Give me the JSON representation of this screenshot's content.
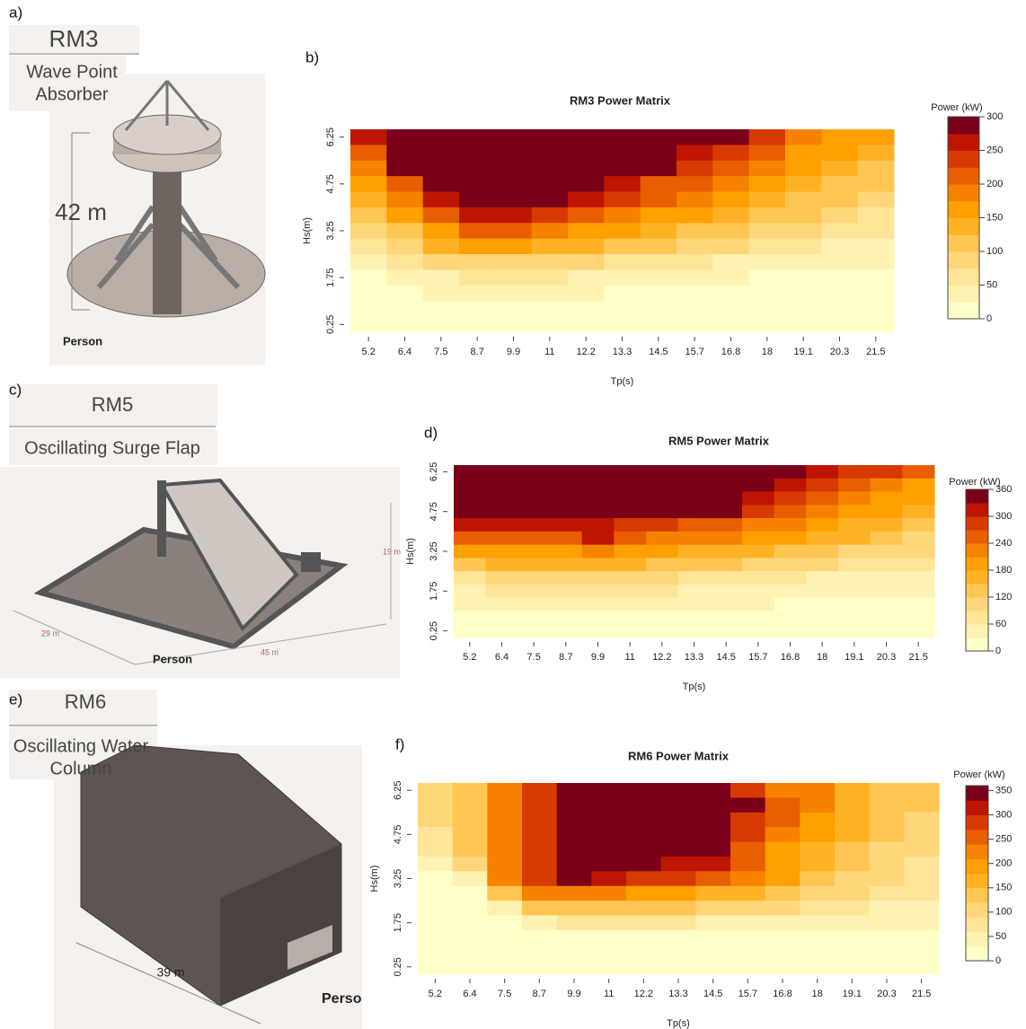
{
  "panels": [
    {
      "label": "a)",
      "title": "RM3",
      "subtitle": [
        "Wave Point",
        "Absorber"
      ],
      "dims": [
        "42 m"
      ],
      "person": "Person"
    },
    {
      "label": "c)",
      "title": "RM5",
      "subtitle": [
        "Oscillating Surge Flap"
      ],
      "dims": [
        "19 m",
        "29 m",
        "45 m"
      ],
      "person": "Person"
    },
    {
      "label": "e)",
      "title": "RM6",
      "subtitle": [
        "Oscillating Water",
        "Column"
      ],
      "dims": [
        "39 m"
      ],
      "person": "Person"
    }
  ],
  "chart_labels": [
    "b)",
    "d)",
    "f)"
  ],
  "chart_data": [
    {
      "type": "heatmap",
      "title": "RM3 Power Matrix",
      "x_label": "Tp(s)",
      "y_label": "Hs(m)",
      "legend_title": "Power (kW)",
      "categories": [
        "5.2",
        "6.4",
        "7.5",
        "8.7",
        "9.9",
        "11",
        "12.2",
        "13.3",
        "14.5",
        "15.7",
        "16.8",
        "18",
        "19.1",
        "20.3",
        "21.5"
      ],
      "y": [
        6.25,
        5.75,
        5.25,
        4.75,
        4.25,
        3.75,
        3.25,
        2.75,
        2.25,
        1.75,
        1.25,
        0.75,
        0.25
      ],
      "ylim": [
        0,
        6.5
      ],
      "yticks": [
        0.25,
        1.75,
        3.25,
        4.75,
        6.25
      ],
      "zlim": [
        0,
        300
      ],
      "zticks": [
        0,
        50,
        100,
        150,
        200,
        250,
        300
      ],
      "colors": [
        "#ffffc8",
        "#fff2b2",
        "#ffe598",
        "#ffd67a",
        "#ffc653",
        "#ffb224",
        "#ff9f00",
        "#f68200",
        "#e95e00",
        "#d73a00",
        "#bd1500",
        "#7a0019"
      ],
      "z": [
        [
          270,
          300,
          300,
          300,
          300,
          300,
          300,
          300,
          300,
          300,
          280,
          230,
          180,
          160,
          150
        ],
        [
          220,
          300,
          300,
          300,
          300,
          300,
          300,
          300,
          300,
          260,
          230,
          200,
          170,
          150,
          130
        ],
        [
          180,
          280,
          300,
          300,
          300,
          300,
          300,
          300,
          280,
          230,
          210,
          180,
          150,
          140,
          110
        ],
        [
          150,
          210,
          300,
          300,
          300,
          300,
          300,
          270,
          220,
          200,
          180,
          160,
          140,
          120,
          100
        ],
        [
          130,
          180,
          260,
          300,
          300,
          300,
          270,
          230,
          200,
          180,
          160,
          140,
          120,
          100,
          90
        ],
        [
          110,
          160,
          220,
          250,
          270,
          240,
          220,
          190,
          170,
          150,
          130,
          110,
          100,
          80,
          70
        ],
        [
          80,
          120,
          170,
          200,
          220,
          190,
          170,
          150,
          130,
          120,
          100,
          90,
          80,
          60,
          50
        ],
        [
          60,
          90,
          130,
          160,
          150,
          140,
          130,
          110,
          100,
          90,
          80,
          60,
          50,
          45,
          40
        ],
        [
          40,
          60,
          80,
          90,
          90,
          90,
          80,
          70,
          60,
          50,
          45,
          40,
          35,
          30,
          25
        ],
        [
          20,
          30,
          45,
          60,
          60,
          55,
          45,
          40,
          35,
          30,
          25,
          20,
          20,
          15,
          15
        ],
        [
          10,
          20,
          25,
          30,
          30,
          30,
          25,
          20,
          20,
          15,
          15,
          10,
          10,
          10,
          10
        ],
        [
          5,
          5,
          10,
          10,
          10,
          10,
          10,
          5,
          5,
          5,
          5,
          5,
          5,
          5,
          5
        ],
        [
          0,
          0,
          0,
          0,
          0,
          0,
          0,
          0,
          0,
          0,
          0,
          0,
          0,
          0,
          0
        ]
      ]
    },
    {
      "type": "heatmap",
      "title": "RM5 Power Matrix",
      "x_label": "Tp(s)",
      "y_label": "Hs(m)",
      "legend_title": "Power (kW)",
      "categories": [
        "5.2",
        "6.4",
        "7.5",
        "8.7",
        "9.9",
        "11",
        "12.2",
        "13.3",
        "14.5",
        "15.7",
        "16.8",
        "18",
        "19.1",
        "20.3",
        "21.5"
      ],
      "y": [
        6.25,
        5.75,
        5.25,
        4.75,
        4.25,
        3.75,
        3.25,
        2.75,
        2.25,
        1.75,
        1.25,
        0.75,
        0.25
      ],
      "ylim": [
        0,
        6.5
      ],
      "yticks": [
        0.25,
        1.75,
        3.25,
        4.75,
        6.25
      ],
      "zlim": [
        0,
        360
      ],
      "zticks": [
        0,
        60,
        120,
        180,
        240,
        300,
        360
      ],
      "colors": [
        "#ffffc8",
        "#fff2b2",
        "#ffe598",
        "#ffd67a",
        "#ffc653",
        "#ffb224",
        "#ff9f00",
        "#f68200",
        "#e95e00",
        "#d73a00",
        "#bd1500",
        "#7a0019"
      ],
      "z": [
        [
          360,
          360,
          360,
          360,
          360,
          360,
          360,
          360,
          360,
          360,
          330,
          300,
          270,
          270,
          240
        ],
        [
          360,
          360,
          360,
          360,
          360,
          360,
          360,
          360,
          360,
          330,
          300,
          270,
          240,
          210,
          200
        ],
        [
          360,
          360,
          360,
          360,
          360,
          360,
          360,
          360,
          360,
          300,
          270,
          240,
          220,
          200,
          180
        ],
        [
          360,
          360,
          360,
          360,
          360,
          330,
          330,
          330,
          330,
          270,
          240,
          220,
          200,
          180,
          160
        ],
        [
          300,
          300,
          300,
          300,
          300,
          280,
          270,
          260,
          250,
          230,
          210,
          190,
          170,
          150,
          140
        ],
        [
          240,
          240,
          240,
          240,
          300,
          250,
          230,
          220,
          210,
          190,
          180,
          160,
          150,
          130,
          110
        ],
        [
          180,
          200,
          200,
          200,
          220,
          200,
          180,
          170,
          160,
          150,
          140,
          130,
          110,
          100,
          90
        ],
        [
          120,
          150,
          150,
          150,
          160,
          150,
          140,
          130,
          120,
          100,
          100,
          90,
          80,
          70,
          60
        ],
        [
          80,
          100,
          100,
          100,
          100,
          90,
          90,
          80,
          80,
          60,
          60,
          50,
          50,
          40,
          40
        ],
        [
          50,
          60,
          60,
          60,
          60,
          60,
          60,
          50,
          50,
          40,
          40,
          30,
          30,
          30,
          30
        ],
        [
          30,
          30,
          30,
          30,
          30,
          30,
          30,
          30,
          30,
          30,
          20,
          20,
          20,
          20,
          20
        ],
        [
          20,
          10,
          10,
          10,
          10,
          10,
          10,
          10,
          10,
          10,
          10,
          10,
          10,
          10,
          10
        ],
        [
          0,
          0,
          0,
          0,
          0,
          0,
          0,
          0,
          0,
          0,
          0,
          0,
          0,
          0,
          0
        ]
      ]
    },
    {
      "type": "heatmap",
      "title": "RM6 Power Matrix",
      "x_label": "Tp(s)",
      "y_label": "Hs(m)",
      "legend_title": "Power (kW)",
      "categories": [
        "5.2",
        "6.4",
        "7.5",
        "8.7",
        "9.9",
        "11",
        "12.2",
        "13.3",
        "14.5",
        "15.7",
        "16.8",
        "18",
        "19.1",
        "20.3",
        "21.5"
      ],
      "y": [
        6.25,
        5.75,
        5.25,
        4.75,
        4.25,
        3.75,
        3.25,
        2.75,
        2.25,
        1.75,
        1.25,
        0.75,
        0.25
      ],
      "ylim": [
        0,
        6.5
      ],
      "yticks": [
        0.25,
        1.75,
        3.25,
        4.75,
        6.25
      ],
      "zlim": [
        0,
        360
      ],
      "zticks": [
        0,
        50,
        100,
        150,
        200,
        250,
        300,
        350
      ],
      "colors": [
        "#ffffc8",
        "#fff2b2",
        "#ffe598",
        "#ffd67a",
        "#ffc653",
        "#ffb224",
        "#ff9f00",
        "#f68200",
        "#e95e00",
        "#d73a00",
        "#bd1500",
        "#7a0019"
      ],
      "z": [
        [
          90,
          140,
          220,
          280,
          360,
          360,
          360,
          360,
          360,
          280,
          220,
          220,
          160,
          140,
          130
        ],
        [
          90,
          140,
          220,
          280,
          360,
          360,
          360,
          360,
          360,
          330,
          250,
          220,
          160,
          140,
          120
        ],
        [
          90,
          140,
          220,
          280,
          360,
          360,
          360,
          360,
          360,
          280,
          250,
          190,
          160,
          130,
          110
        ],
        [
          80,
          140,
          220,
          280,
          360,
          360,
          360,
          360,
          360,
          280,
          220,
          180,
          150,
          120,
          100
        ],
        [
          60,
          140,
          220,
          280,
          360,
          360,
          360,
          360,
          360,
          260,
          200,
          160,
          130,
          110,
          90
        ],
        [
          40,
          100,
          220,
          280,
          360,
          360,
          360,
          320,
          300,
          250,
          190,
          150,
          120,
          100,
          80
        ],
        [
          20,
          30,
          220,
          280,
          360,
          320,
          290,
          270,
          250,
          230,
          180,
          140,
          110,
          90,
          70
        ],
        [
          20,
          20,
          140,
          210,
          220,
          220,
          190,
          180,
          170,
          160,
          140,
          100,
          90,
          70,
          60
        ],
        [
          20,
          20,
          40,
          130,
          130,
          130,
          130,
          130,
          110,
          100,
          90,
          70,
          60,
          50,
          40
        ],
        [
          20,
          20,
          20,
          40,
          60,
          60,
          60,
          60,
          40,
          40,
          40,
          30,
          30,
          30,
          30
        ],
        [
          10,
          10,
          10,
          10,
          10,
          10,
          10,
          10,
          10,
          10,
          10,
          10,
          10,
          10,
          10
        ],
        [
          10,
          10,
          10,
          10,
          10,
          10,
          10,
          10,
          10,
          10,
          10,
          10,
          10,
          10,
          10
        ],
        [
          0,
          0,
          0,
          0,
          0,
          0,
          0,
          0,
          0,
          0,
          0,
          0,
          0,
          0,
          0
        ]
      ]
    }
  ]
}
